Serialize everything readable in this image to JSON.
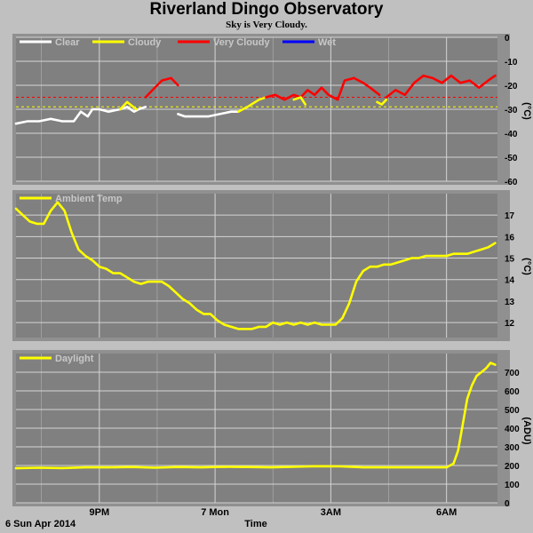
{
  "header": {
    "title": "Riverland Dingo Observatory",
    "subtitle": "Sky is Very Cloudy."
  },
  "footer": {
    "date_label": "6 Sun Apr 2014",
    "time_axis_label": "Time"
  },
  "x_axis": {
    "range_hours": [
      0,
      20.8
    ],
    "ticks": [
      {
        "hour": 3.6,
        "label": "9PM"
      },
      {
        "hour": 8.6,
        "label": "7 Mon"
      },
      {
        "hour": 13.6,
        "label": "3AM"
      },
      {
        "hour": 18.6,
        "label": "6AM"
      }
    ],
    "minor_ticks_hours": [
      1.1,
      6.1,
      11.1,
      16.1
    ]
  },
  "colors": {
    "panel_bg": "#808080",
    "page_bg": "#c0c0c0",
    "grid": "#d4d4d4",
    "clear": "#ffffff",
    "cloudy": "#ffff00",
    "very_cloudy": "#ff0000",
    "wet": "#0000ff"
  },
  "chart_data": [
    {
      "type": "line",
      "ylabel": "(°C)",
      "ylim": [
        -60,
        0
      ],
      "y_ticks": [
        0,
        -10,
        -20,
        -30,
        -40,
        -50,
        -60
      ],
      "legend": [
        "Clear",
        "Cloudy",
        "Very Cloudy",
        "Wet"
      ],
      "thresholds": [
        {
          "value": -25,
          "color": "very_cloudy"
        },
        {
          "value": -29,
          "color": "cloudy"
        }
      ],
      "series": [
        {
          "name": "Clear",
          "color": "clear",
          "x": [
            0,
            0.5,
            1,
            1.5,
            2,
            2.5,
            2.8,
            3.1,
            3.3,
            3.6,
            4,
            4.5,
            4.8,
            5.1,
            5.3,
            5.6
          ],
          "y": [
            -36,
            -35,
            -35,
            -34,
            -35,
            -35,
            -31,
            -33,
            -30,
            -30,
            -31,
            -30,
            -29,
            -31,
            -30,
            -29
          ]
        },
        {
          "name": "Cloudy",
          "color": "cloudy",
          "x": [
            4.5,
            4.8,
            5.2
          ],
          "y": [
            -30,
            -27,
            -30
          ]
        },
        {
          "name": "Very Cloudy",
          "color": "very_cloudy",
          "x": [
            5.6,
            5.9,
            6.3,
            6.7,
            7.0
          ],
          "y": [
            -25,
            -22,
            -18,
            -17,
            -20
          ]
        },
        {
          "name": "Clear",
          "color": "clear",
          "x": [
            7.0,
            7.3,
            7.8,
            8.3,
            8.8,
            9.3,
            9.6
          ],
          "y": [
            -32,
            -33,
            -33,
            -33,
            -32,
            -31,
            -31
          ]
        },
        {
          "name": "Cloudy",
          "color": "cloudy",
          "x": [
            9.6,
            10,
            10.5,
            10.8
          ],
          "y": [
            -31,
            -29,
            -26,
            -25
          ]
        },
        {
          "name": "Very Cloudy",
          "color": "very_cloudy",
          "x": [
            10.8,
            11.2,
            11.6,
            12.0,
            12.3,
            12.6,
            12.9,
            13.2,
            13.5,
            13.9,
            14.2,
            14.6
          ],
          "y": [
            -25,
            -24,
            -26,
            -24,
            -25,
            -22,
            -24,
            -21,
            -24,
            -26,
            -18,
            -17
          ]
        },
        {
          "name": "Cloudy",
          "color": "cloudy",
          "x": [
            12.0,
            12.3,
            12.5
          ],
          "y": [
            -26,
            -25,
            -28
          ]
        },
        {
          "name": "Very Cloudy",
          "color": "very_cloudy",
          "x": [
            14.6,
            15.0,
            15.3,
            15.7
          ],
          "y": [
            -17,
            -19,
            -21,
            -24
          ]
        },
        {
          "name": "Cloudy",
          "color": "cloudy",
          "x": [
            15.6,
            15.8,
            16.0
          ],
          "y": [
            -27,
            -28,
            -26
          ]
        },
        {
          "name": "Very Cloudy",
          "color": "very_cloudy",
          "x": [
            16.0,
            16.4,
            16.8,
            17.2,
            17.6,
            18.0,
            18.4,
            18.8,
            19.2,
            19.6,
            20.0,
            20.4,
            20.7
          ],
          "y": [
            -25,
            -22,
            -24,
            -19,
            -16,
            -17,
            -19,
            -16,
            -19,
            -18,
            -21,
            -18,
            -16
          ]
        }
      ]
    },
    {
      "type": "line",
      "ylabel": "(°C)",
      "ylim": [
        11.3,
        18
      ],
      "y_ticks": [
        12,
        13,
        14,
        15,
        16,
        17
      ],
      "legend": [
        "Ambient Temp"
      ],
      "series": [
        {
          "name": "Ambient Temp",
          "color": "cloudy",
          "x": [
            0,
            0.3,
            0.6,
            0.9,
            1.2,
            1.5,
            1.8,
            2.1,
            2.4,
            2.7,
            3.0,
            3.3,
            3.6,
            3.9,
            4.2,
            4.5,
            4.8,
            5.1,
            5.4,
            5.7,
            6.0,
            6.3,
            6.6,
            6.9,
            7.2,
            7.5,
            7.8,
            8.1,
            8.4,
            8.7,
            9.0,
            9.3,
            9.6,
            9.9,
            10.2,
            10.5,
            10.8,
            11.1,
            11.4,
            11.7,
            12.0,
            12.3,
            12.6,
            12.9,
            13.2,
            13.5,
            13.8,
            14.1,
            14.4,
            14.7,
            15.0,
            15.3,
            15.6,
            15.9,
            16.2,
            16.5,
            16.8,
            17.1,
            17.4,
            17.7,
            18.0,
            18.3,
            18.6,
            18.9,
            19.2,
            19.5,
            19.8,
            20.1,
            20.4,
            20.7
          ],
          "y": [
            17.3,
            17.0,
            16.7,
            16.6,
            16.6,
            17.2,
            17.6,
            17.2,
            16.2,
            15.4,
            15.1,
            14.9,
            14.6,
            14.5,
            14.3,
            14.3,
            14.1,
            13.9,
            13.8,
            13.9,
            13.9,
            13.9,
            13.7,
            13.4,
            13.1,
            12.9,
            12.6,
            12.4,
            12.4,
            12.1,
            11.9,
            11.8,
            11.7,
            11.7,
            11.7,
            11.8,
            11.8,
            12.0,
            11.9,
            12.0,
            11.9,
            12.0,
            11.9,
            12.0,
            11.9,
            11.9,
            11.9,
            12.2,
            12.9,
            13.9,
            14.4,
            14.6,
            14.6,
            14.7,
            14.7,
            14.8,
            14.9,
            15.0,
            15.0,
            15.1,
            15.1,
            15.1,
            15.1,
            15.2,
            15.2,
            15.2,
            15.3,
            15.4,
            15.5,
            15.7
          ]
        }
      ]
    },
    {
      "type": "line",
      "ylabel": "(ADU)",
      "ylim": [
        0,
        800
      ],
      "y_ticks": [
        0,
        100,
        200,
        300,
        400,
        500,
        600,
        700
      ],
      "legend": [
        "Daylight"
      ],
      "series": [
        {
          "name": "Daylight",
          "color": "cloudy",
          "x": [
            0,
            1,
            2,
            3,
            4,
            5,
            6,
            7,
            8,
            9,
            10,
            11,
            12,
            13,
            14,
            15,
            16,
            17,
            18,
            18.6,
            18.9,
            19.1,
            19.3,
            19.5,
            19.7,
            19.9,
            20.1,
            20.3,
            20.5,
            20.7
          ],
          "y": [
            185,
            188,
            186,
            190,
            190,
            192,
            188,
            192,
            190,
            193,
            192,
            190,
            193,
            196,
            195,
            190,
            190,
            190,
            190,
            190,
            210,
            280,
            420,
            560,
            630,
            680,
            700,
            720,
            750,
            740
          ]
        }
      ]
    }
  ]
}
